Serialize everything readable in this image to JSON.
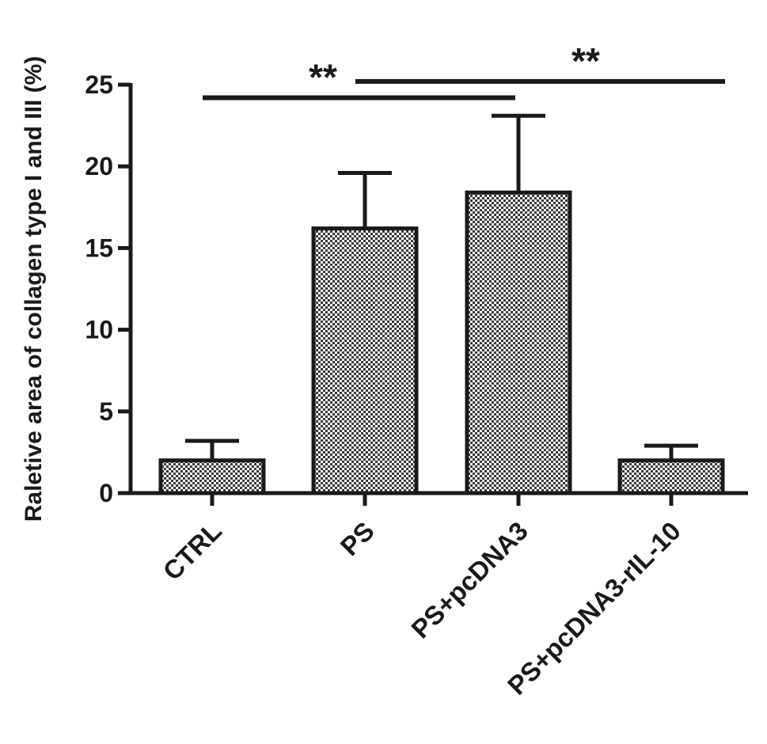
{
  "chart_data": {
    "type": "bar",
    "title": "",
    "xlabel": "",
    "ylabel": "Raletive area of collagen type I and III (%)",
    "ylim": [
      0,
      25
    ],
    "yticks": [
      0,
      5,
      10,
      15,
      20,
      25
    ],
    "categories": [
      "CTRL",
      "PS",
      "PS+pcDNA3",
      "PS+pcDNA3-rIL-10"
    ],
    "values": [
      2.0,
      16.2,
      18.4,
      2.0
    ],
    "error_upper": [
      1.2,
      3.4,
      4.7,
      0.9
    ],
    "bar_fill": "checkered",
    "grid": false,
    "legend": "none",
    "significance": [
      {
        "from": "CTRL",
        "to": "PS+pcDNA3",
        "label": "**",
        "level": 24.2
      },
      {
        "from": "PS",
        "to": "PS+pcDNA3-rIL-10",
        "label": "**",
        "level": 25.2
      }
    ]
  },
  "colors": {
    "ink": "#1a1a1a",
    "checker_dark": "#3a3a3a",
    "checker_light": "#ffffff",
    "background": "#ffffff"
  }
}
